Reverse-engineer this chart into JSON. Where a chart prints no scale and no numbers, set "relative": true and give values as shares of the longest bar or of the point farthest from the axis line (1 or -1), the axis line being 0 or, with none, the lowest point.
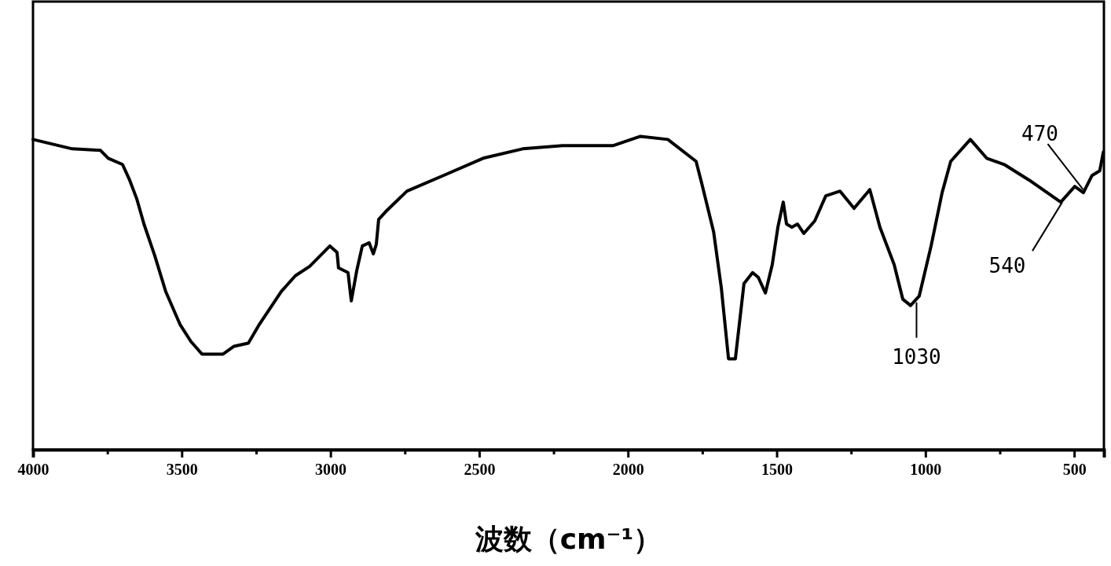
{
  "chart_data": {
    "type": "line",
    "relative": true,
    "xlabel": "波数（cm⁻¹）",
    "xlim": [
      4000,
      400
    ],
    "xticks": [
      4000,
      {
        "value": 3750,
        "label": null
      },
      3500,
      {
        "value": 3250,
        "label": null
      },
      3000,
      {
        "value": 2750,
        "label": null
      },
      2500,
      {
        "value": 2250,
        "label": null
      },
      2000,
      {
        "value": 1750,
        "label": null
      },
      1500,
      {
        "value": 1250,
        "label": null
      },
      1000,
      {
        "value": 750,
        "label": null
      },
      500
    ],
    "line_style": "solid",
    "series": [
      {
        "color": "#000000",
        "x": [
          4000,
          3868,
          3773,
          3747,
          3699,
          3675,
          3651,
          3627,
          3591,
          3554,
          3506,
          3469,
          3432,
          3361,
          3324,
          3276,
          3239,
          3165,
          3118,
          3070,
          3002,
          2978,
          2973,
          2941,
          2930,
          2912,
          2893,
          2870,
          2856,
          2846,
          2838,
          2814,
          2743,
          2608,
          2487,
          2354,
          2220,
          2051,
          1958,
          1866,
          1771,
          1752,
          1712,
          1686,
          1662,
          1639,
          1610,
          1581,
          1562,
          1538,
          1515,
          1496,
          1478,
          1467,
          1449,
          1430,
          1409,
          1372,
          1335,
          1287,
          1240,
          1187,
          1153,
          1105,
          1076,
          1050,
          1021,
          981,
          944,
          915,
          849,
          794,
          735,
          651,
          545,
          498,
          469,
          440,
          414,
          402
        ],
        "values": [
          0.99,
          0.96,
          0.955,
          0.93,
          0.91,
          0.86,
          0.8,
          0.72,
          0.62,
          0.505,
          0.4,
          0.345,
          0.305,
          0.305,
          0.33,
          0.34,
          0.4,
          0.505,
          0.555,
          0.585,
          0.65,
          0.63,
          0.58,
          0.565,
          0.475,
          0.57,
          0.65,
          0.66,
          0.625,
          0.655,
          0.735,
          0.76,
          0.825,
          0.88,
          0.93,
          0.96,
          0.97,
          0.97,
          1.0,
          0.99,
          0.92,
          0.85,
          0.695,
          0.515,
          0.29,
          0.29,
          0.53,
          0.565,
          0.55,
          0.5,
          0.59,
          0.71,
          0.79,
          0.72,
          0.71,
          0.72,
          0.69,
          0.73,
          0.81,
          0.825,
          0.77,
          0.83,
          0.71,
          0.59,
          0.48,
          0.46,
          0.49,
          0.65,
          0.82,
          0.92,
          0.99,
          0.93,
          0.91,
          0.86,
          0.79,
          0.84,
          0.82,
          0.875,
          0.89,
          0.95
        ]
      }
    ],
    "annotations": [
      {
        "text": "1030",
        "x": 1030,
        "y": 0.47
      },
      {
        "text": "540",
        "x": 540,
        "y": 0.79
      },
      {
        "text": "470",
        "x": 470,
        "y": 0.83
      }
    ]
  }
}
